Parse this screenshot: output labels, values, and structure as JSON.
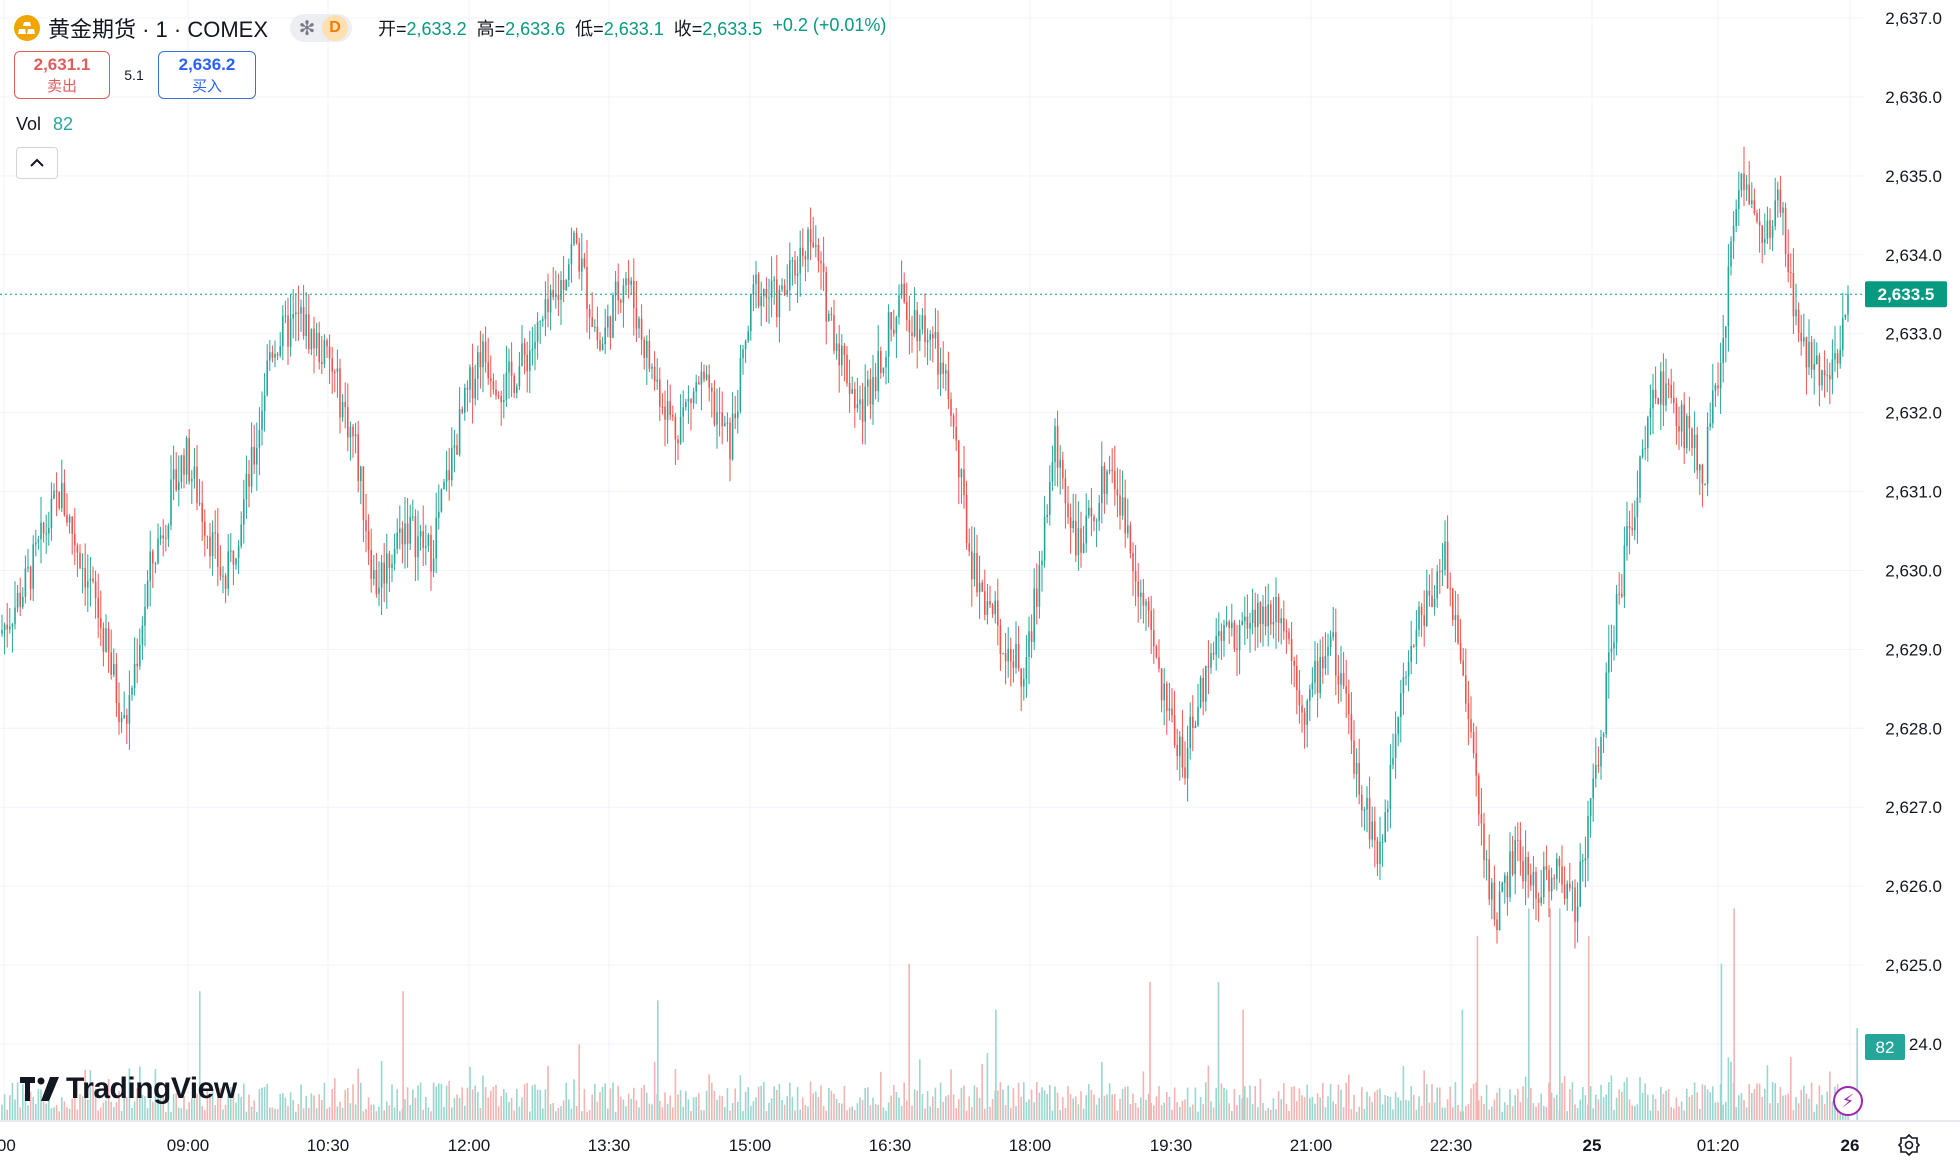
{
  "header": {
    "symbol": "黄金期货 · 1 · COMEX",
    "interval_badge": "D",
    "ohlc": {
      "open_label": "开=",
      "open": "2,633.2",
      "high_label": "高=",
      "high": "2,633.6",
      "low_label": "低=",
      "low": "2,633.1",
      "close_label": "收=",
      "close": "2,633.5",
      "change": "+0.2 (+0.01%)"
    }
  },
  "trade": {
    "sell_price": "2,631.1",
    "sell_label": "卖出",
    "spread": "5.1",
    "buy_price": "2,636.2",
    "buy_label": "买入"
  },
  "volume": {
    "label": "Vol",
    "value": "82"
  },
  "brand": "TradingView",
  "colors": {
    "up": "#26a69a",
    "down": "#ef5350",
    "up_vol": "#9bd6cf",
    "down_vol": "#f4b4b1",
    "grid": "#f0f3fa",
    "last_price": "#089981"
  },
  "icons": {
    "logo": "gold-bars-icon",
    "star": "asterisk-icon",
    "collapse": "chevron-up-icon",
    "flash": "lightning-icon",
    "settings": "gear-icon"
  },
  "chart_data": {
    "type": "candlestick",
    "interval": "1 minute",
    "y_axis_labels": [
      "2,637.0",
      "2,636.0",
      "2,635.0",
      "2,634.0",
      "2,633.0",
      "2,632.0",
      "2,631.0",
      "2,630.0",
      "2,629.0",
      "2,628.0",
      "2,627.0",
      "2,626.0",
      "2,625.0",
      "24.0"
    ],
    "y_min_visible": 2624.0,
    "y_max_visible": 2637.0,
    "x_axis_labels": [
      ":00",
      "09:00",
      "10:30",
      "12:00",
      "13:30",
      "15:00",
      "16:30",
      "18:00",
      "19:30",
      "21:00",
      "22:30",
      "25",
      "01:20",
      "26"
    ],
    "last_price": 2633.5,
    "last_price_label": "2,633.5",
    "last_volume_label": "82",
    "series": [
      {
        "name": "price",
        "points": [
          [
            ":00",
            2629.5
          ],
          [
            "09:00",
            2629.5
          ],
          [
            "10:30",
            2633.5
          ],
          [
            "12:00",
            2632.0
          ],
          [
            "13:30",
            2634.0
          ],
          [
            "15:00",
            2633.5
          ],
          [
            "16:30",
            2633.0
          ],
          [
            "18:00",
            2630.0
          ],
          [
            "19:30",
            2628.0
          ],
          [
            "21:00",
            2628.5
          ],
          [
            "22:30",
            2627.5
          ],
          [
            "25",
            2626.5
          ],
          [
            "01:20",
            2632.0
          ],
          [
            "26",
            2633.5
          ]
        ]
      }
    ],
    "price_path": [
      [
        0,
        2629.2
      ],
      [
        25,
        2629.8
      ],
      [
        60,
        2631.0
      ],
      [
        95,
        2629.6
      ],
      [
        125,
        2628.0
      ],
      [
        150,
        2630.0
      ],
      [
        185,
        2631.5
      ],
      [
        225,
        2629.8
      ],
      [
        255,
        2631.5
      ],
      [
        270,
        2632.8
      ],
      [
        300,
        2633.2
      ],
      [
        330,
        2632.6
      ],
      [
        355,
        2631.6
      ],
      [
        375,
        2629.8
      ],
      [
        405,
        2630.6
      ],
      [
        430,
        2630.2
      ],
      [
        455,
        2631.6
      ],
      [
        480,
        2632.8
      ],
      [
        505,
        2632.3
      ],
      [
        530,
        2632.8
      ],
      [
        555,
        2633.4
      ],
      [
        575,
        2634.2
      ],
      [
        600,
        2632.8
      ],
      [
        625,
        2633.8
      ],
      [
        650,
        2632.6
      ],
      [
        675,
        2631.8
      ],
      [
        700,
        2632.4
      ],
      [
        730,
        2631.6
      ],
      [
        755,
        2633.6
      ],
      [
        780,
        2633.4
      ],
      [
        810,
        2634.3
      ],
      [
        830,
        2633.2
      ],
      [
        860,
        2632.0
      ],
      [
        900,
        2633.4
      ],
      [
        930,
        2633.0
      ],
      [
        950,
        2632.1
      ],
      [
        970,
        2630.2
      ],
      [
        1000,
        2629.2
      ],
      [
        1025,
        2628.6
      ],
      [
        1055,
        2631.6
      ],
      [
        1080,
        2630.2
      ],
      [
        1110,
        2631.4
      ],
      [
        1140,
        2629.8
      ],
      [
        1165,
        2628.3
      ],
      [
        1185,
        2627.6
      ],
      [
        1215,
        2629.2
      ],
      [
        1250,
        2629.3
      ],
      [
        1280,
        2629.6
      ],
      [
        1305,
        2628.2
      ],
      [
        1330,
        2629.2
      ],
      [
        1360,
        2627.3
      ],
      [
        1380,
        2626.3
      ],
      [
        1400,
        2628.6
      ],
      [
        1420,
        2629.4
      ],
      [
        1445,
        2630.2
      ],
      [
        1460,
        2629.0
      ],
      [
        1480,
        2626.8
      ],
      [
        1495,
        2625.6
      ],
      [
        1515,
        2626.4
      ],
      [
        1535,
        2626.0
      ],
      [
        1555,
        2626.2
      ],
      [
        1575,
        2625.8
      ],
      [
        1595,
        2627.3
      ],
      [
        1615,
        2629.4
      ],
      [
        1640,
        2631.3
      ],
      [
        1660,
        2632.4
      ],
      [
        1685,
        2631.8
      ],
      [
        1705,
        2631.3
      ],
      [
        1725,
        2633.2
      ],
      [
        1740,
        2635.2
      ],
      [
        1760,
        2634.2
      ],
      [
        1780,
        2634.6
      ],
      [
        1800,
        2632.8
      ],
      [
        1820,
        2632.6
      ],
      [
        1835,
        2632.6
      ],
      [
        1850,
        2633.5
      ]
    ],
    "volume_spikes": [
      [
        183,
        14
      ],
      [
        373,
        14
      ],
      [
        611,
        13
      ],
      [
        846,
        17
      ],
      [
        927,
        12
      ],
      [
        1071,
        15
      ],
      [
        1135,
        15
      ],
      [
        1158,
        12
      ],
      [
        1363,
        12
      ],
      [
        1377,
        20
      ],
      [
        1425,
        23
      ],
      [
        1445,
        23
      ],
      [
        1454,
        23
      ],
      [
        1481,
        20
      ],
      [
        1605,
        17
      ],
      [
        1617,
        23
      ],
      [
        1732,
        10
      ],
      [
        1843,
        13
      ]
    ]
  }
}
